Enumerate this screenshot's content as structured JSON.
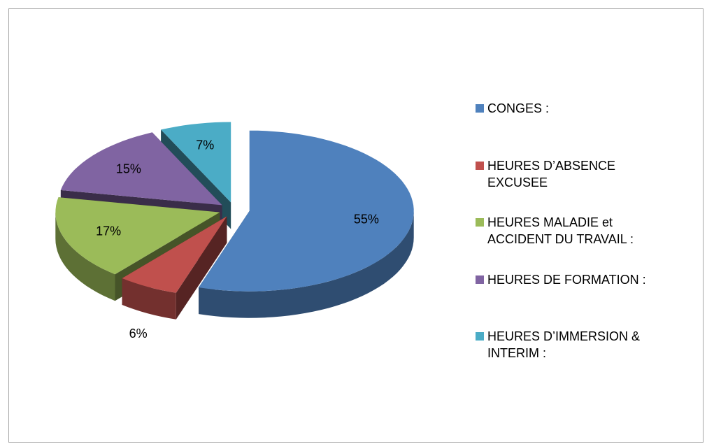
{
  "chart_data": {
    "type": "pie",
    "categories": [
      "CONGES :",
      "HEURES D’ABSENCE EXCUSEE",
      "HEURES MALADIE et ACCIDENT DU TRAVAIL :",
      "HEURES DE FORMATION :",
      "HEURES D’IMMERSION & INTERIM :"
    ],
    "values": [
      55,
      6,
      17,
      15,
      7
    ],
    "value_labels": [
      "55%",
      "6%",
      "17%",
      "15%",
      "7%"
    ],
    "colors": [
      "#4f81bd",
      "#c0504d",
      "#9bbb59",
      "#8064a2",
      "#4bacc6"
    ],
    "legend": "right"
  }
}
